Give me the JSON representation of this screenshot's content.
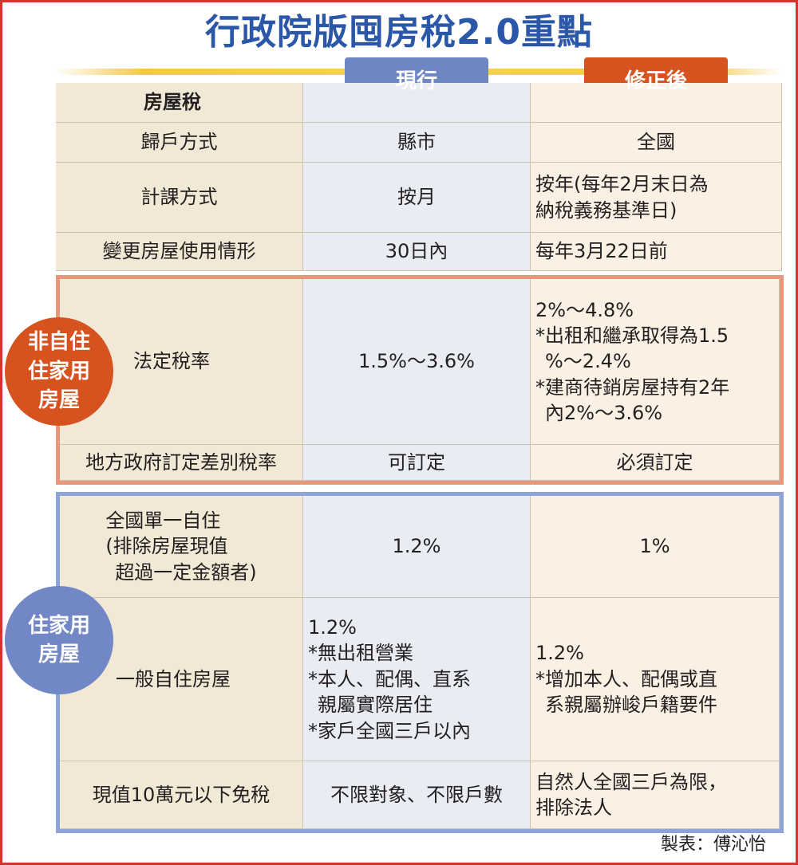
{
  "title": "行政院版囤房稅2.0重點",
  "columns": {
    "current": "現行",
    "revised": "修正後"
  },
  "badges": {
    "non_owner": [
      "非自住",
      "住家用",
      "房屋"
    ],
    "owner": [
      "住家用",
      "房屋"
    ]
  },
  "rows": {
    "header_label": "房屋稅",
    "household": {
      "label": "歸戶方式",
      "current": "縣市",
      "revised": "全國"
    },
    "calc": {
      "label": "計課方式",
      "current": "按月",
      "revised": [
        "按年(每年2月末日為",
        "納稅義務基準日)"
      ]
    },
    "change": {
      "label": "變更房屋使用情形",
      "current": "30日內",
      "revised": "每年3月22日前"
    },
    "legal_rate": {
      "label": "法定稅率",
      "current": "1.5%～3.6%",
      "revised": [
        "2%～4.8%",
        "*出租和繼承取得為1.5",
        "%～2.4%",
        "*建商待銷房屋持有2年",
        "內2%～3.6%"
      ]
    },
    "diff_rate": {
      "label": "地方政府訂定差別稅率",
      "current": "可訂定",
      "revised": "必須訂定"
    },
    "single_owner": {
      "label": [
        "全國單一自住",
        "(排除房屋現值",
        "超過一定金額者)"
      ],
      "current": "1.2%",
      "revised": "1%"
    },
    "general_owner": {
      "label": "一般自住房屋",
      "current": [
        "1.2%",
        "*無出租營業",
        "*本人、配偶、直系",
        "親屬實際居住",
        "*家戶全國三戶以內"
      ],
      "revised": [
        "1.2%",
        "*增加本人、配偶或直",
        "系親屬辦峻戶籍要件"
      ]
    },
    "exempt": {
      "label": "現值10萬元以下免稅",
      "current": "不限對象、不限戶數",
      "revised": [
        "自然人全國三戶為限，",
        "排除法人"
      ]
    }
  },
  "credit": "製表：傅沁怡",
  "colors": {
    "accent_blue": "#2b57a8",
    "accent_orange": "#d6531f",
    "border_red": "#d7322d"
  }
}
